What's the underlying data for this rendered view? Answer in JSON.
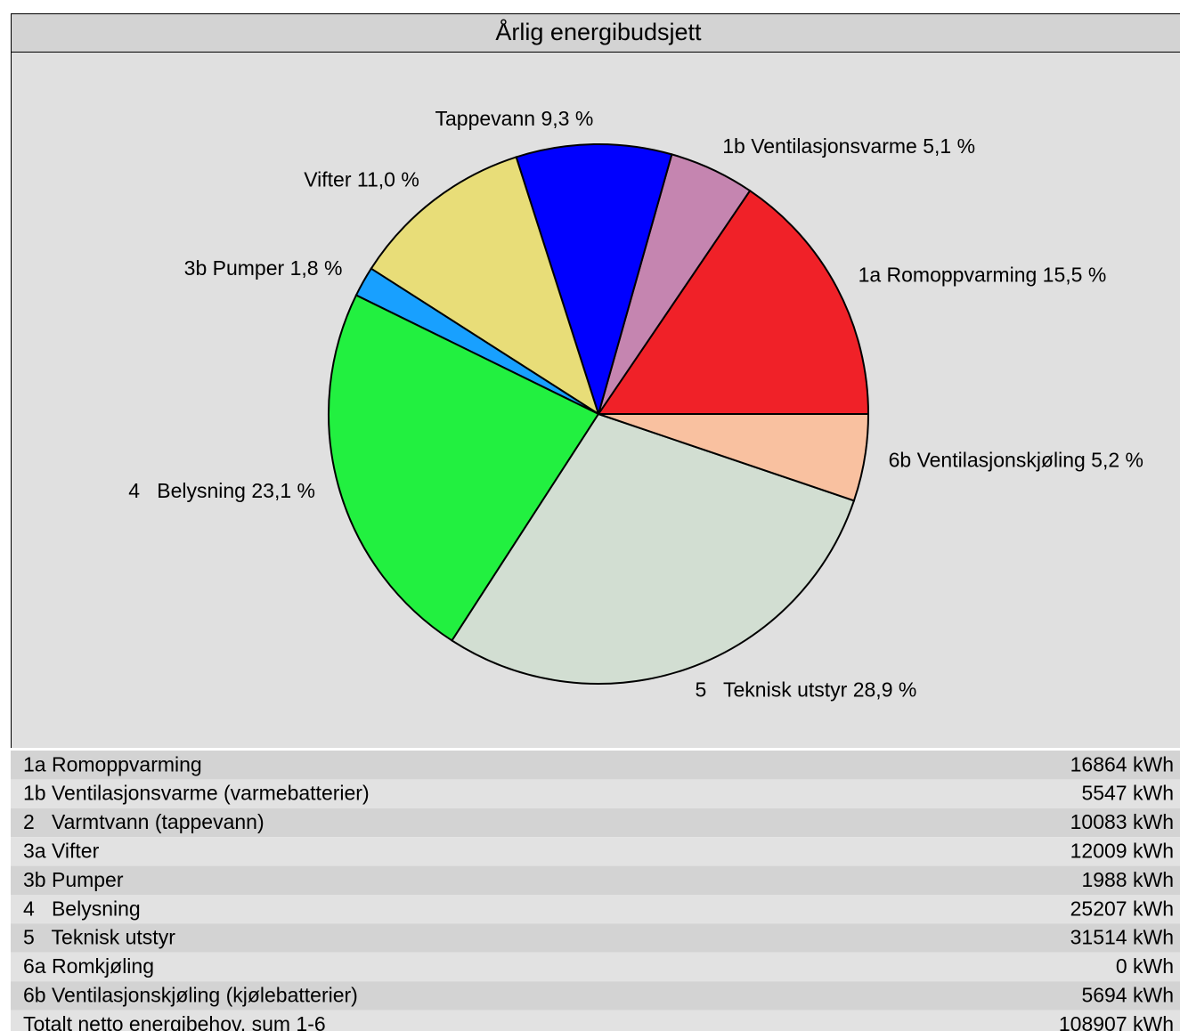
{
  "chart_data": {
    "type": "pie",
    "title": "Årlig energibudsjett",
    "categories": [
      "1a Romoppvarming",
      "1b Ventilasjonsvarme",
      "Tappevann",
      "Vifter",
      "3b Pumper",
      "4   Belysning",
      "5   Teknisk utstyr",
      "6b Ventilasjonskjøling"
    ],
    "values": [
      15.5,
      5.1,
      9.3,
      11.0,
      1.8,
      23.1,
      28.9,
      5.2
    ],
    "value_labels": [
      "15,5 %",
      "5,1 %",
      "9,3 %",
      "11,0 %",
      "1,8 %",
      "23,1 %",
      "28,9 %",
      "5,2 %"
    ],
    "colors": [
      "#f02128",
      "#c585b0",
      "#0000ff",
      "#e8dd78",
      "#18a0ff",
      "#22f040",
      "#d2ded2",
      "#f9c1a0"
    ]
  },
  "table": {
    "rows": [
      [
        "1a Romoppvarming",
        "16864 kWh"
      ],
      [
        "1b Ventilasjonsvarme (varmebatterier)",
        "5547 kWh"
      ],
      [
        "2   Varmtvann (tappevann)",
        "10083 kWh"
      ],
      [
        "3a Vifter",
        "12009 kWh"
      ],
      [
        "3b Pumper",
        "1988 kWh"
      ],
      [
        "4   Belysning",
        "25207 kWh"
      ],
      [
        "5   Teknisk utstyr",
        "31514 kWh"
      ],
      [
        "6a Romkjøling",
        "0 kWh"
      ],
      [
        "6b Ventilasjonskjøling (kjølebatterier)",
        "5694 kWh"
      ],
      [
        "Totalt netto energibehov, sum 1-6",
        "108907 kWh"
      ]
    ]
  }
}
